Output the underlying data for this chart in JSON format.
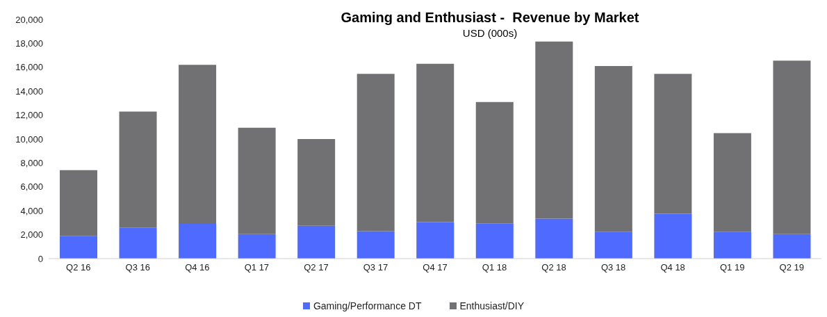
{
  "chart_data": {
    "type": "bar",
    "stacked": true,
    "title": "Gaming and Enthusiast -  Revenue by Market",
    "subtitle": "USD (000s)",
    "categories": [
      "Q2 16",
      "Q3 16",
      "Q4 16",
      "Q1 17",
      "Q2 17",
      "Q3 17",
      "Q4 17",
      "Q1 18",
      "Q2 18",
      "Q3 18",
      "Q4 18",
      "Q1 19",
      "Q2 19"
    ],
    "series": [
      {
        "name": "Gaming/Performance DT",
        "color": "#4f6bff",
        "values": [
          1900,
          2600,
          2900,
          2050,
          2750,
          2300,
          3050,
          2950,
          3350,
          2250,
          3750,
          2250,
          2050
        ]
      },
      {
        "name": "Enthusiast/DIY",
        "color": "#717073",
        "values": [
          5500,
          9700,
          13300,
          8900,
          7250,
          13150,
          13250,
          10150,
          14800,
          13850,
          11700,
          8250,
          14500
        ]
      }
    ],
    "ylim": [
      0,
      20000
    ],
    "yticks": [
      0,
      {
        "value": 2000,
        "label": "2,000"
      },
      {
        "value": 4000,
        "label": "4,000"
      },
      {
        "value": 6000,
        "label": "6,000"
      },
      {
        "value": 8000,
        "label": "8,000"
      },
      {
        "value": 10000,
        "label": "10,000"
      },
      {
        "value": 12000,
        "label": "12,000"
      },
      {
        "value": 14000,
        "label": "14,000"
      },
      {
        "value": 16000,
        "label": "16,000"
      },
      {
        "value": 18000,
        "label": "18,000"
      },
      {
        "value": 20000,
        "label": "20,000"
      }
    ],
    "grid": false,
    "legend": "bottom"
  }
}
